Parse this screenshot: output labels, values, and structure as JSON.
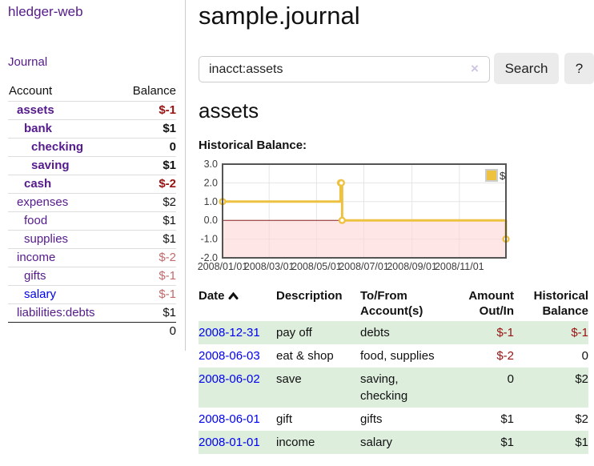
{
  "sidebar": {
    "app_title": "hledger-web",
    "journal_label": "Journal",
    "accounts_table": {
      "account_header": "Account",
      "balance_header": "Balance",
      "rows": [
        {
          "name": "assets",
          "indent": 0,
          "emphasis": true,
          "link_color": "visited",
          "balance": "$-1",
          "balance_tone": "neg"
        },
        {
          "name": "bank",
          "indent": 1,
          "emphasis": true,
          "link_color": "visited",
          "balance": "$1",
          "balance_tone": "plain"
        },
        {
          "name": "checking",
          "indent": 2,
          "emphasis": true,
          "link_color": "visited",
          "balance": "0",
          "balance_tone": "plain"
        },
        {
          "name": "saving",
          "indent": 2,
          "emphasis": true,
          "link_color": "visited",
          "balance": "$1",
          "balance_tone": "plain"
        },
        {
          "name": "cash",
          "indent": 1,
          "emphasis": true,
          "link_color": "visited",
          "balance": "$-2",
          "balance_tone": "neg"
        },
        {
          "name": "expenses",
          "indent": 0,
          "emphasis": false,
          "link_color": "visited",
          "balance": "$2",
          "balance_tone": "plain"
        },
        {
          "name": "food",
          "indent": 1,
          "emphasis": false,
          "link_color": "visited",
          "balance": "$1",
          "balance_tone": "plain"
        },
        {
          "name": "supplies",
          "indent": 1,
          "emphasis": false,
          "link_color": "visited",
          "balance": "$1",
          "balance_tone": "plain"
        },
        {
          "name": "income",
          "indent": 0,
          "emphasis": false,
          "link_color": "visited",
          "balance": "$-2",
          "balance_tone": "neg-muted"
        },
        {
          "name": "gifts",
          "indent": 1,
          "emphasis": false,
          "link_color": "visited",
          "balance": "$-1",
          "balance_tone": "neg-muted"
        },
        {
          "name": "salary",
          "indent": 1,
          "emphasis": false,
          "link_color": "unvisited",
          "balance": "$-1",
          "balance_tone": "neg-muted"
        },
        {
          "name": "liabilities:debts",
          "indent": 0,
          "emphasis": false,
          "link_color": "visited",
          "balance": "$1",
          "balance_tone": "plain"
        }
      ],
      "total": "0"
    }
  },
  "main": {
    "title": "sample.journal",
    "search": {
      "value": "inacct:assets",
      "clear_icon": "×",
      "button_label": "Search",
      "help_label": "?"
    },
    "account_heading": "assets",
    "chart_label": "Historical Balance:"
  },
  "chart_data": {
    "type": "line",
    "title": "Historical Balance:",
    "step": true,
    "series": [
      {
        "name": "$",
        "color": "#edc240",
        "points": [
          [
            "2008-01-01",
            1
          ],
          [
            "2008-06-01",
            2
          ],
          [
            "2008-06-02",
            2
          ],
          [
            "2008-06-03",
            0
          ],
          [
            "2008-12-31",
            -1
          ]
        ]
      }
    ],
    "xlim": [
      "2008-01-01",
      "2008-12-31"
    ],
    "ylim": [
      -2,
      3
    ],
    "y_ticks": [
      {
        "value": 3,
        "label": "3.0"
      },
      {
        "value": 2,
        "label": "2.0"
      },
      {
        "value": 1,
        "label": "1.0"
      },
      {
        "value": 0,
        "label": "0.0"
      },
      {
        "value": -1,
        "label": "-1.0"
      },
      {
        "value": -2,
        "label": "-2.0"
      }
    ],
    "x_ticks": [
      {
        "value": "2008-01-01",
        "label": "2008/01/01"
      },
      {
        "value": "2008-03-01",
        "label": "2008/03/01"
      },
      {
        "value": "2008-05-01",
        "label": "2008/05/01"
      },
      {
        "value": "2008-07-01",
        "label": "2008/07/01"
      },
      {
        "value": "2008-09-01",
        "label": "2008/09/01"
      },
      {
        "value": "2008-11-01",
        "label": "2008/11/01"
      }
    ],
    "grid": true,
    "legend_position": "top-right",
    "colors": {
      "negative_region_fill": "#ffd6d6",
      "zero_line": "#8b2222",
      "plot_border": "#545454",
      "gridline": "#e5e5e5",
      "tick_text": "#3c3c3c",
      "marker_fill": "#ffffff"
    }
  },
  "transactions": {
    "headers": {
      "date": "Date",
      "description": "Description",
      "tofrom": "To/From\nAccount(s)",
      "amount": "Amount\nOut/In",
      "balance": "Historical\nBalance"
    },
    "rows": [
      {
        "date": "2008-12-31",
        "description": "pay off",
        "tofrom": "debts",
        "amount": "$-1",
        "amount_negative": true,
        "balance": "$-1",
        "balance_negative": true,
        "shaded": true
      },
      {
        "date": "2008-06-03",
        "description": "eat & shop",
        "tofrom": "food, supplies",
        "amount": "$-2",
        "amount_negative": true,
        "balance": "0",
        "balance_negative": false,
        "shaded": false
      },
      {
        "date": "2008-06-02",
        "description": "save",
        "tofrom": "saving,\nchecking",
        "amount": "0",
        "amount_negative": false,
        "balance": "$2",
        "balance_negative": false,
        "shaded": true
      },
      {
        "date": "2008-06-01",
        "description": "gift",
        "tofrom": "gifts",
        "amount": "$1",
        "amount_negative": false,
        "balance": "$2",
        "balance_negative": false,
        "shaded": false
      },
      {
        "date": "2008-01-01",
        "description": "income",
        "tofrom": "salary",
        "amount": "$1",
        "amount_negative": false,
        "balance": "$1",
        "balance_negative": false,
        "shaded": true
      }
    ]
  }
}
